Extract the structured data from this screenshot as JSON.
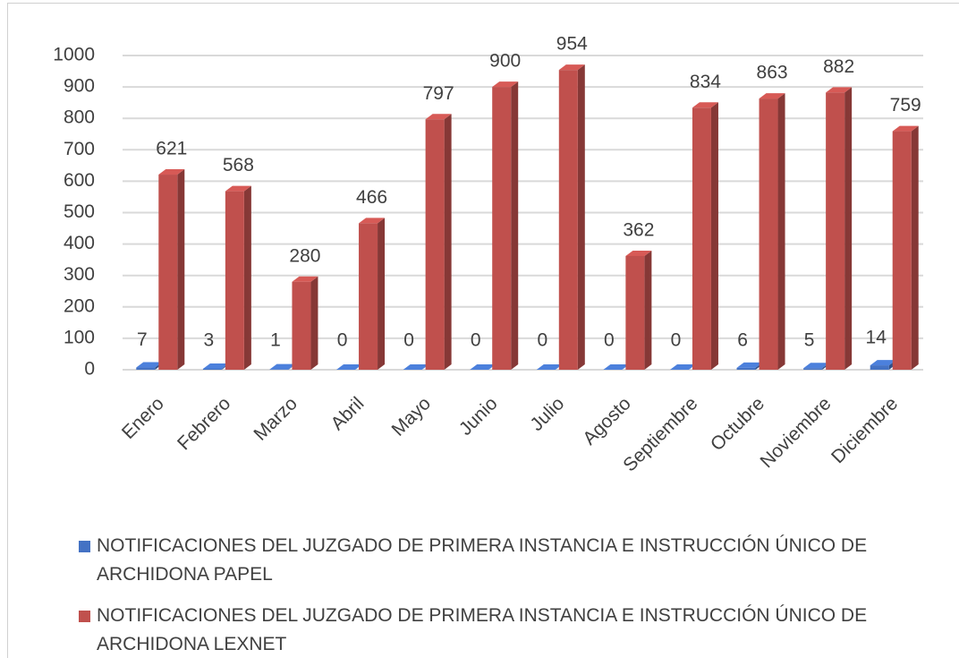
{
  "chart_data": {
    "type": "bar",
    "categories": [
      "Enero",
      "Febrero",
      "Marzo",
      "Abril",
      "Mayo",
      "Junio",
      "Julio",
      "Agosto",
      "Septiembre",
      "Octubre",
      "Noviembre",
      "Diciembre"
    ],
    "series": [
      {
        "name": "NOTIFICACIONES DEL JUZGADO DE PRIMERA INSTANCIA E INSTRUCCIÓN ÚNICO DE ARCHIDONA PAPEL",
        "color": "#4472c4",
        "values": [
          7,
          3,
          1,
          0,
          0,
          0,
          0,
          0,
          0,
          6,
          5,
          14
        ]
      },
      {
        "name": "NOTIFICACIONES DEL JUZGADO DE PRIMERA INSTANCIA E INSTRUCCIÓN ÚNICO DE ARCHIDONA LEXNET",
        "color": "#c0504d",
        "values": [
          621,
          568,
          280,
          466,
          797,
          900,
          954,
          362,
          834,
          863,
          882,
          759
        ]
      }
    ],
    "ylim": [
      0,
      1000
    ],
    "yticks": [
      0,
      100,
      200,
      300,
      400,
      500,
      600,
      700,
      800,
      900,
      1000
    ],
    "grid": true,
    "legend": "bottom"
  }
}
